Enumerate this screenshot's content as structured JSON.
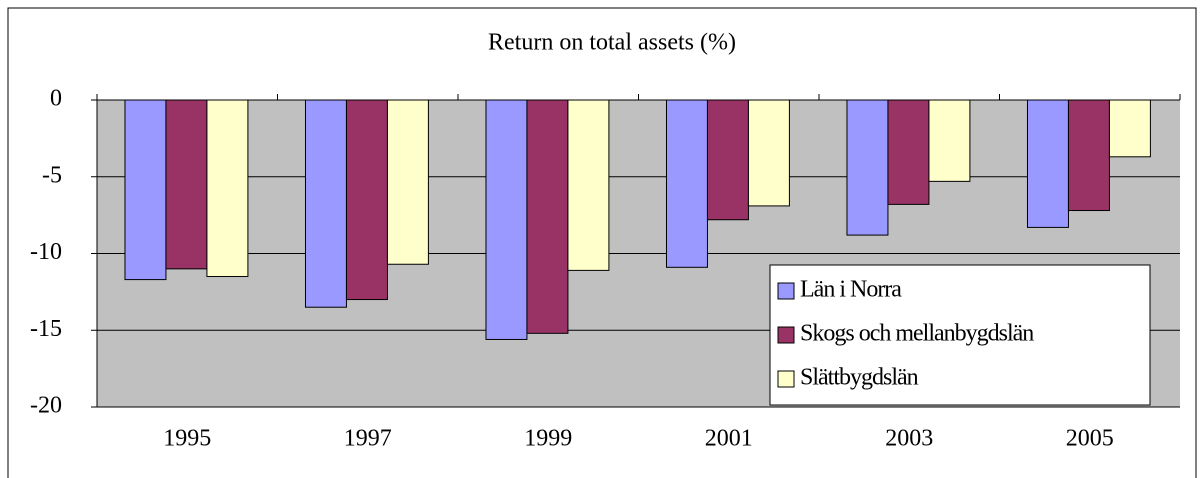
{
  "chart_data": {
    "type": "bar",
    "title": "Return on total assets (%)",
    "categories": [
      "1995",
      "1997",
      "1999",
      "2001",
      "2003",
      "2005"
    ],
    "series": [
      {
        "name": "Län i Norra",
        "color": "#9999ff",
        "values": [
          -11.7,
          -13.5,
          -15.6,
          -10.9,
          -8.8,
          -8.3
        ]
      },
      {
        "name": "Skogs och mellanbygdslän",
        "color": "#993366",
        "values": [
          -11.0,
          -13.0,
          -15.2,
          -7.8,
          -6.8,
          -7.2
        ]
      },
      {
        "name": "Slättbygdslän",
        "color": "#ffffcc",
        "values": [
          -11.5,
          -10.7,
          -11.1,
          -6.9,
          -5.3,
          -3.7
        ]
      }
    ],
    "ylim": [
      -20,
      0
    ],
    "yticks": [
      0,
      -5,
      -10,
      -15,
      -20
    ],
    "grid": true,
    "legend": "lower right"
  }
}
